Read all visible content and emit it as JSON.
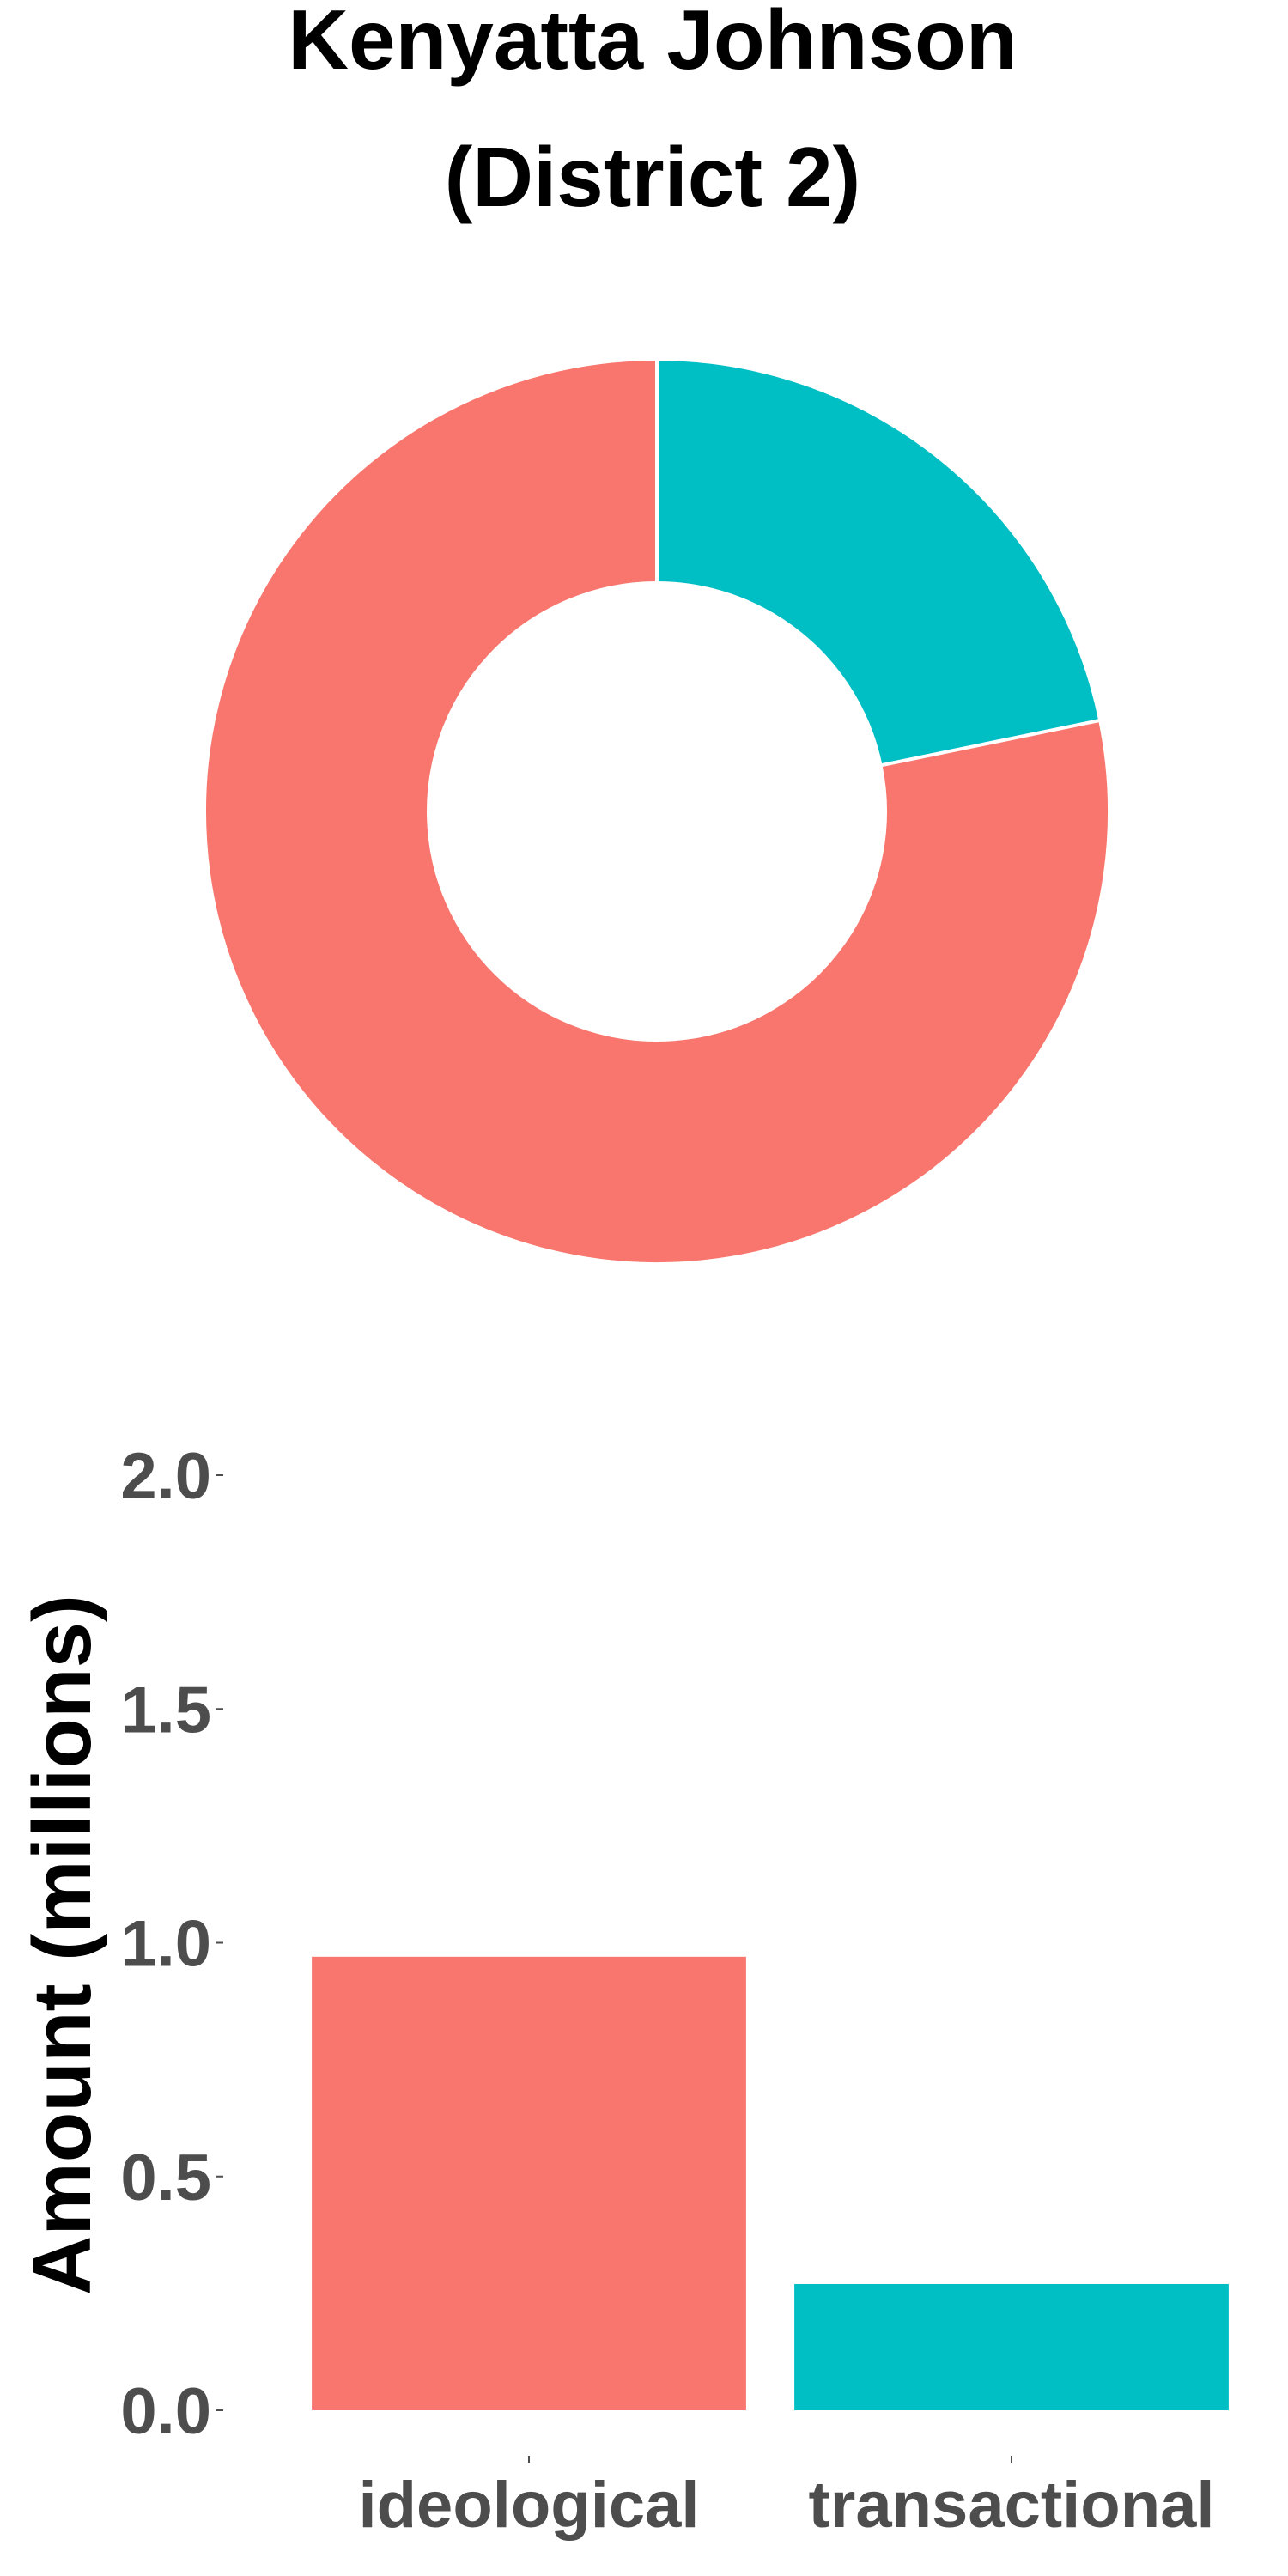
{
  "title_line1": "Kenyatta Johnson",
  "title_line2": "(District 2)",
  "chart_data": [
    {
      "type": "pie",
      "donut": true,
      "title": "Kenyatta Johnson (District 2)",
      "categories": [
        "ideological",
        "transactional"
      ],
      "values": [
        0.97,
        0.27
      ],
      "colors": [
        "#F8766D",
        "#00BFC4"
      ],
      "legend": "none"
    },
    {
      "type": "bar",
      "categories": [
        "ideological",
        "transactional"
      ],
      "values": [
        0.97,
        0.27
      ],
      "colors": [
        "#F8766D",
        "#00BFC4"
      ],
      "ylabel": "Amount (millions)",
      "xlabel": "",
      "ylim": [
        0,
        2.0
      ],
      "yticks": [
        "0.0",
        "0.5",
        "1.0",
        "1.5",
        "2.0"
      ],
      "ytick_values": [
        0,
        0.5,
        1.0,
        1.5,
        2.0
      ],
      "grid": false,
      "legend": "none"
    }
  ]
}
